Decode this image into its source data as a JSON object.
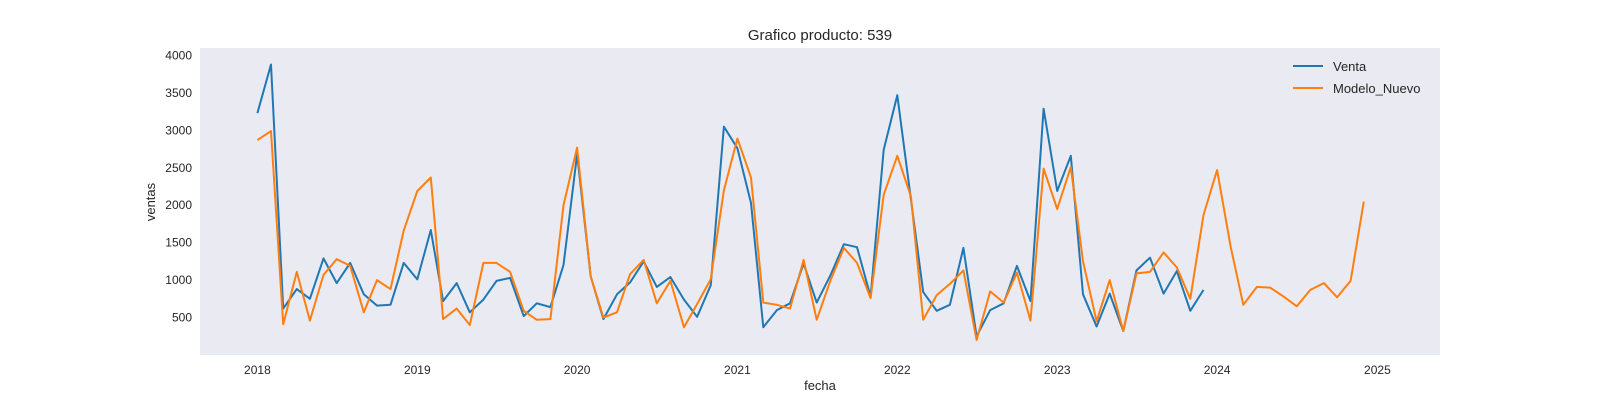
{
  "chart_data": {
    "type": "line",
    "title": "Grafico producto: 539",
    "xlabel": "fecha",
    "ylabel": "ventas",
    "xlim": [
      "2017-08-23",
      "2025-05-24"
    ],
    "ylim": [
      0,
      4100
    ],
    "x_ticks": [
      "2018",
      "2019",
      "2020",
      "2021",
      "2022",
      "2023",
      "2024",
      "2025"
    ],
    "y_ticks": [
      500,
      1000,
      1500,
      2000,
      2500,
      3000,
      3500,
      4000
    ],
    "grid": false,
    "legend_position": "top-right",
    "series": [
      {
        "name": "Venta",
        "color": "#1f77b4",
        "x": [
          "2018-01",
          "2018-02",
          "2018-03",
          "2018-04",
          "2018-05",
          "2018-06",
          "2018-07",
          "2018-08",
          "2018-09",
          "2018-10",
          "2018-11",
          "2018-12",
          "2019-01",
          "2019-02",
          "2019-03",
          "2019-04",
          "2019-05",
          "2019-06",
          "2019-07",
          "2019-08",
          "2019-09",
          "2019-10",
          "2019-11",
          "2019-12",
          "2020-01",
          "2020-02",
          "2020-03",
          "2020-04",
          "2020-05",
          "2020-06",
          "2020-07",
          "2020-08",
          "2020-09",
          "2020-10",
          "2020-11",
          "2020-12",
          "2021-01",
          "2021-02",
          "2021-03",
          "2021-04",
          "2021-05",
          "2021-06",
          "2021-07",
          "2021-08",
          "2021-09",
          "2021-10",
          "2021-11",
          "2021-12",
          "2022-01",
          "2022-02",
          "2022-03",
          "2022-04",
          "2022-05",
          "2022-06",
          "2022-07",
          "2022-08",
          "2022-09",
          "2022-10",
          "2022-11",
          "2022-12",
          "2023-01",
          "2023-02",
          "2023-03",
          "2023-04",
          "2023-05",
          "2023-06",
          "2023-07",
          "2023-08",
          "2023-09",
          "2023-10",
          "2023-11",
          "2023-12"
        ],
        "values": [
          3230,
          3880,
          620,
          880,
          750,
          1290,
          960,
          1230,
          810,
          660,
          670,
          1230,
          1010,
          1670,
          720,
          960,
          570,
          740,
          990,
          1030,
          520,
          690,
          640,
          1200,
          2680,
          1050,
          480,
          810,
          970,
          1250,
          910,
          1040,
          740,
          510,
          930,
          3050,
          2760,
          2030,
          370,
          600,
          690,
          1220,
          700,
          1060,
          1480,
          1440,
          780,
          2740,
          3470,
          2080,
          840,
          590,
          670,
          1430,
          250,
          600,
          690,
          1190,
          720,
          3290,
          2190,
          2660,
          810,
          380,
          820,
          320,
          1130,
          1300,
          820,
          1120,
          590,
          870
        ]
      },
      {
        "name": "Modelo_Nuevo",
        "color": "#ff7f0e",
        "x": [
          "2018-01",
          "2018-02",
          "2018-03",
          "2018-04",
          "2018-05",
          "2018-06",
          "2018-07",
          "2018-08",
          "2018-09",
          "2018-10",
          "2018-11",
          "2018-12",
          "2019-01",
          "2019-02",
          "2019-03",
          "2019-04",
          "2019-05",
          "2019-06",
          "2019-07",
          "2019-08",
          "2019-09",
          "2019-10",
          "2019-11",
          "2019-12",
          "2020-01",
          "2020-02",
          "2020-03",
          "2020-04",
          "2020-05",
          "2020-06",
          "2020-07",
          "2020-08",
          "2020-09",
          "2020-10",
          "2020-11",
          "2020-12",
          "2021-01",
          "2021-02",
          "2021-03",
          "2021-04",
          "2021-05",
          "2021-06",
          "2021-07",
          "2021-08",
          "2021-09",
          "2021-10",
          "2021-11",
          "2021-12",
          "2022-01",
          "2022-02",
          "2022-03",
          "2022-04",
          "2022-05",
          "2022-06",
          "2022-07",
          "2022-08",
          "2022-09",
          "2022-10",
          "2022-11",
          "2022-12",
          "2023-01",
          "2023-02",
          "2023-03",
          "2023-04",
          "2023-05",
          "2023-06",
          "2023-07",
          "2023-08",
          "2023-09",
          "2023-10",
          "2023-11",
          "2023-12",
          "2024-01",
          "2024-02",
          "2024-03",
          "2024-04",
          "2024-05",
          "2024-06",
          "2024-07",
          "2024-08",
          "2024-09",
          "2024-10",
          "2024-11",
          "2024-12"
        ],
        "values": [
          2870,
          2990,
          410,
          1110,
          460,
          1070,
          1280,
          1190,
          570,
          1000,
          880,
          1660,
          2190,
          2370,
          480,
          620,
          400,
          1230,
          1230,
          1110,
          590,
          470,
          480,
          2000,
          2770,
          1050,
          500,
          570,
          1080,
          1270,
          690,
          990,
          370,
          680,
          1010,
          2200,
          2890,
          2370,
          700,
          670,
          620,
          1270,
          470,
          990,
          1430,
          1230,
          760,
          2140,
          2660,
          2120,
          470,
          800,
          950,
          1130,
          200,
          850,
          700,
          1100,
          460,
          2490,
          1950,
          2510,
          1250,
          450,
          1000,
          320,
          1090,
          1110,
          1370,
          1170,
          750,
          1870,
          2470,
          1450,
          670,
          910,
          900,
          780,
          650,
          870,
          960,
          770,
          990,
          2050
        ]
      }
    ]
  }
}
